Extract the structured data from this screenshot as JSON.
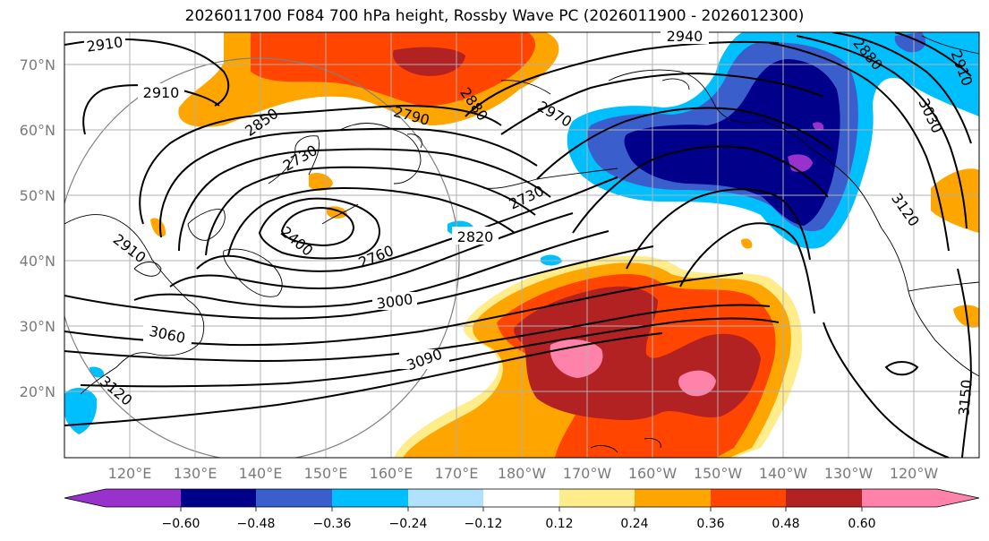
{
  "title": "2026011700 F084 700 hPa height, Rossby Wave PC (2026011900 - 2026012300)",
  "colors": {
    "neg_060": "#9932cc",
    "neg_048": "#00008b",
    "neg_036": "#3a5fcd",
    "neg_024": "#00bfff",
    "neg_012": "#b0e2ff",
    "zero": "#ffffff",
    "pos_012": "#ffec8b",
    "pos_024": "#ffa500",
    "pos_036": "#ff4500",
    "pos_048": "#b22222",
    "pos_060": "#ff82ab",
    "contour": "#000000",
    "coast": "#000000",
    "grid": "#b0b0b0",
    "axis_label": "#7a7a7a"
  },
  "lat_labels": [
    "70°N",
    "60°N",
    "50°N",
    "40°N",
    "30°N",
    "20°N"
  ],
  "lon_labels": [
    "120°E",
    "130°E",
    "140°E",
    "150°E",
    "160°E",
    "170°E",
    "180°W",
    "170°W",
    "160°W",
    "150°W",
    "140°W",
    "130°W",
    "120°W"
  ],
  "colorbar_ticks": [
    "−0.60",
    "−0.48",
    "−0.36",
    "−0.24",
    "−0.12",
    "0.12",
    "0.24",
    "0.36",
    "0.48",
    "0.60"
  ],
  "contour_labels": [
    "2910",
    "2910",
    "2850",
    "2790",
    "2880",
    "2940",
    "2970",
    "2730",
    "2730",
    "2400",
    "2760",
    "2820",
    "2910",
    "3000",
    "3060",
    "3090",
    "3120",
    "3030",
    "3120",
    "3150",
    "2880",
    "2910"
  ]
}
